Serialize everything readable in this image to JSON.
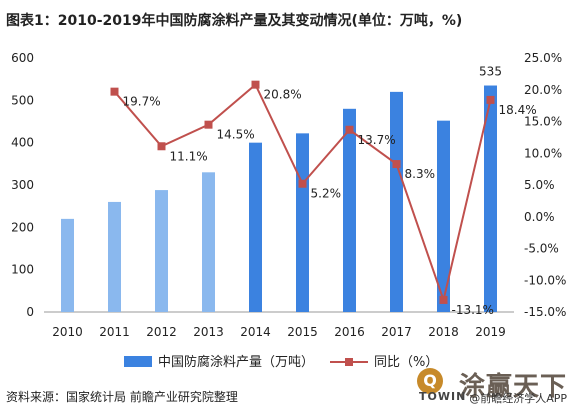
{
  "title": "图表1：2010-2019年中国防腐涂料产量及其变动情况(单位：万吨，%)",
  "source": "资料来源：国家统计局 前瞻产业研究院整理",
  "brand": {
    "name": "涂赢天下",
    "logo": "TOWIN",
    "sub": "@前瞻经济学人APP"
  },
  "chart_data": {
    "type": "bar+line",
    "categories": [
      "2010",
      "2011",
      "2012",
      "2013",
      "2014",
      "2015",
      "2016",
      "2017",
      "2018",
      "2019"
    ],
    "series": [
      {
        "name": "中国防腐涂料产量（万吨）",
        "type": "bar",
        "axis": "left",
        "values": [
          220,
          260,
          288,
          330,
          400,
          422,
          480,
          520,
          452,
          535
        ],
        "data_labels": {
          "9": "535"
        },
        "color_light": "#8ab8ee",
        "color_dark": "#3b82e0"
      },
      {
        "name": "同比（%）",
        "type": "line",
        "axis": "right",
        "values": [
          null,
          19.7,
          11.1,
          14.5,
          20.8,
          5.2,
          13.7,
          8.3,
          -13.1,
          18.4
        ],
        "data_labels": [
          "",
          "19.7%",
          "11.1%",
          "14.5%",
          "20.8%",
          "5.2%",
          "13.7%",
          "8.3%",
          "-13.1%",
          "18.4%"
        ],
        "color": "#c0504d"
      }
    ],
    "y_left": {
      "min": 0,
      "max": 600,
      "ticks": [
        "0",
        "100",
        "200",
        "300",
        "400",
        "500",
        "600"
      ]
    },
    "y_right": {
      "min": -15,
      "max": 25,
      "ticks": [
        "-15.0%",
        "-10.0%",
        "-5.0%",
        "0.0%",
        "5.0%",
        "10.0%",
        "15.0%",
        "20.0%",
        "25.0%"
      ]
    },
    "grid": false,
    "legend_position": "bottom"
  }
}
